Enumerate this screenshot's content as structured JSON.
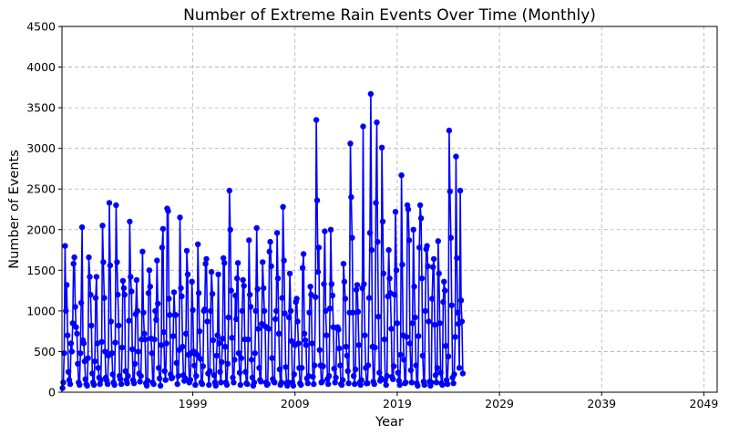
{
  "chart_data": {
    "type": "line",
    "title": "Number of Extreme Rain Events Over Time (Monthly)",
    "xlabel": "Year",
    "ylabel": "Number of Events",
    "xlim": [
      1986.2,
      2050.3
    ],
    "ylim": [
      0,
      4500
    ],
    "grid": true,
    "grid_style": "dashed",
    "line_color": "#0000ff",
    "marker": "circle",
    "x_ticks": [
      1999,
      2009,
      2019,
      2029,
      2039,
      2049
    ],
    "x_tick_labels": [
      "1999",
      "2009",
      "2019",
      "2029",
      "2039",
      "2049"
    ],
    "y_ticks": [
      0,
      500,
      1000,
      1500,
      2000,
      2500,
      3000,
      3500,
      4000,
      4500
    ],
    "y_tick_labels": [
      "0",
      "500",
      "1000",
      "1500",
      "2000",
      "2500",
      "3000",
      "3500",
      "4000",
      "4500"
    ],
    "x_start": 1986.25,
    "x_step": 0.08333,
    "series": [
      {
        "values": [
          50,
          120,
          480,
          1800,
          1000,
          1320,
          700,
          250,
          150,
          100,
          600,
          500,
          850,
          1580,
          1660,
          1050,
          800,
          720,
          350,
          120,
          90,
          480,
          1100,
          2030,
          640,
          600,
          380,
          160,
          100,
          80,
          420,
          1660,
          1420,
          1200,
          820,
          230,
          120,
          90,
          380,
          1160,
          1420,
          600,
          300,
          180,
          100,
          150,
          620,
          2050,
          1600,
          1160,
          500,
          180,
          140,
          100,
          450,
          2330,
          1560,
          870,
          480,
          220,
          120,
          90,
          610,
          2300,
          1600,
          1200,
          820,
          200,
          160,
          100,
          550,
          1370,
          1280,
          1200,
          260,
          150,
          110,
          200,
          880,
          2100,
          1420,
          1240,
          530,
          150,
          110,
          350,
          960,
          1380,
          1000,
          500,
          230,
          130,
          200,
          650,
          1730,
          980,
          720,
          650,
          110,
          80,
          140,
          1220,
          1500,
          1300,
          660,
          480,
          120,
          100,
          650,
          1000,
          890,
          1620,
          1090,
          300,
          170,
          80,
          580,
          1780,
          2010,
          740,
          260,
          150,
          600,
          2260,
          2230,
          1150,
          950,
          220,
          170,
          180,
          690,
          1230,
          950,
          950,
          360,
          100,
          200,
          520,
          2150,
          1280,
          1180,
          560,
          210,
          140,
          170,
          720,
          1740,
          1450,
          460,
          120,
          150,
          480,
          1360,
          1010,
          500,
          330,
          90,
          200,
          460,
          1820,
          1220,
          750,
          410,
          120,
          100,
          320,
          1000,
          1020,
          1580,
          1640,
          870,
          230,
          90,
          260,
          1000,
          1480,
          1210,
          640,
          210,
          120,
          80,
          450,
          700,
          1450,
          600,
          250,
          120,
          370,
          660,
          1650,
          1590,
          560,
          120,
          90,
          350,
          920,
          2480,
          2000,
          1250,
          670,
          180,
          120,
          400,
          1190,
          900,
          1400,
          1590,
          480,
          240,
          90,
          420,
          1000,
          1380,
          1310,
          650,
          250,
          110,
          100,
          650,
          1870,
          1200,
          1050,
          400,
          180,
          80,
          120,
          480,
          1000,
          2020,
          1270,
          780,
          300,
          150,
          130,
          840,
          1600,
          1280,
          1000,
          810,
          120,
          90,
          100,
          780,
          1730,
          1850,
          1550,
          420,
          160,
          130,
          120,
          900,
          1000,
          1960,
          1400,
          720,
          280,
          90,
          120,
          1160,
          2280,
          1620,
          970,
          310,
          110,
          80,
          120,
          920,
          1460,
          1000,
          630,
          120,
          80,
          220,
          580,
          1110,
          1150
        ]
      }
    ],
    "series_part2": [
      870,
      600,
      300,
      110,
      90,
      300,
      1530,
      1700,
      720,
      640,
      580,
      170,
      110,
      200,
      980,
      1300,
      1200,
      600,
      190,
      100,
      330,
      1170,
      3350,
      2360,
      1480,
      1780,
      520,
      330,
      120,
      130,
      320,
      1330,
      1980,
      1000,
      700,
      160,
      100,
      200,
      1030,
      2000,
      1330,
      1190,
      800,
      290,
      120,
      180,
      790,
      800,
      770,
      540,
      330,
      100,
      90,
      150,
      1580,
      1360,
      1150,
      560,
      450,
      260,
      110,
      980,
      3060,
      2400,
      1900,
      980,
      200,
      100,
      280,
      1260,
      1320,
      990,
      580,
      120,
      90,
      150,
      1280,
      3270,
      1330,
      700,
      300,
      110,
      110,
      330,
      1160,
      1960,
      3670,
      1750,
      560,
      130,
      100,
      550,
      2330,
      3320,
      1850,
      930,
      240,
      140,
      170,
      3010,
      2100,
      1460,
      650,
      150,
      90,
      200,
      1180,
      1750,
      1400,
      1220,
      780,
      190,
      160,
      320,
      1200,
      2220,
      1500,
      850,
      240,
      140,
      90,
      460,
      2670,
      1570,
      700,
      400,
      110,
      120,
      680,
      2300,
      2250,
      1870,
      600,
      270,
      120,
      850,
      2000,
      1300,
      920,
      330,
      110,
      80,
      690,
      1780,
      2300,
      2140,
      1400,
      450,
      130,
      90,
      1000,
      1760,
      1800,
      1550,
      870,
      130,
      80,
      120,
      1150,
      1540,
      1640,
      830,
      210,
      120,
      300,
      1860,
      1460,
      850,
      240,
      110,
      90,
      1110,
      1360,
      1250,
      570,
      150,
      100,
      440,
      3220,
      2470,
      1900,
      1070,
      180,
      110,
      220,
      680,
      2900,
      1650,
      980,
      840,
      300,
      2480,
      1130,
      870,
      230
    ]
  }
}
